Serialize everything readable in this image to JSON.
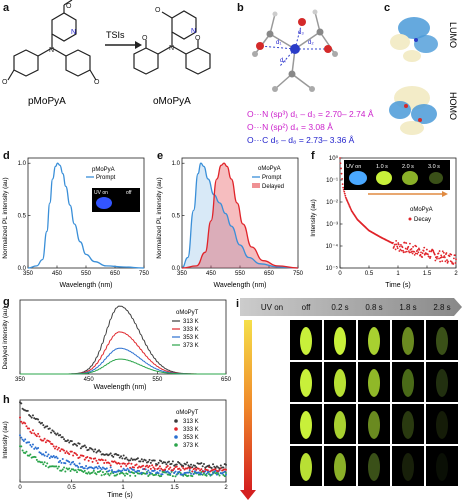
{
  "panels": {
    "a": {
      "letter": "a",
      "left_molecule": "pMoPyA",
      "right_molecule": "oMoPyA",
      "arrow_label": "TSIs"
    },
    "b": {
      "letter": "b",
      "line1": "O···N (sp³) d₁ – d₃ = 2.70– 2.74 Å",
      "line2": "O···N (sp²) d₄ = 3.08 Å",
      "line3": "O···C d₅ – d₈ = 2.73– 3.36 Å"
    },
    "c": {
      "letter": "c",
      "lumo": "LUMO",
      "homo": "HOMO"
    },
    "d": {
      "letter": "d",
      "ylabel": "Normalized PL intensity (au)",
      "xlabel": "Wavelength (nm)",
      "legend_title": "pMoPyA",
      "legend_item": "Prompt",
      "inset_on": "UV on",
      "inset_off": "off"
    },
    "e": {
      "letter": "e",
      "ylabel": "Normalized PL intensity (au)",
      "xlabel": "Wavelength (nm)",
      "legend_title": "oMoPyA",
      "legend_prompt": "Prompt",
      "legend_delayed": "Delayed"
    },
    "f": {
      "letter": "f",
      "ylabel": "Intensity (au)",
      "xlabel": "Time (s)",
      "legend_title": "oMoPyA",
      "legend_item": "Decay",
      "inset_labels": [
        "UV on",
        "1.0 s",
        "2.0 s",
        "3.0 s"
      ]
    },
    "g": {
      "letter": "g",
      "ylabel": "Dealyed intensity (au)",
      "xlabel": "Wavelength (nm)",
      "legend_title": "oMoPyT"
    },
    "h": {
      "letter": "h",
      "ylabel": "Intensity (au)",
      "xlabel": "Time (s)",
      "legend_title": "oMoPyT"
    },
    "i": {
      "letter": "i",
      "headers": [
        "UV on",
        "off",
        "0.2 s",
        "0.8 s",
        "1.8 s",
        "2.8 s"
      ],
      "temps": [
        "313 K",
        "333 K",
        "353 K",
        "373 K"
      ]
    }
  },
  "colors": {
    "prompt_blue": "#3a8fd8",
    "delayed_red": "#e0242a",
    "g313": "#3a3a3a",
    "g333": "#e0242a",
    "g353": "#2a6fd0",
    "g373": "#2aa44a",
    "label_magenta": "#cc22cc",
    "label_blue": "#2222cc"
  },
  "chart_data": [
    {
      "type": "line",
      "id": "d",
      "xlim": [
        350,
        750
      ],
      "xticks": [
        350,
        450,
        550,
        650,
        750
      ],
      "ylim": [
        0,
        1.05
      ],
      "yticks": [
        0.0,
        0.5,
        1.0
      ],
      "series": [
        {
          "name": "Prompt",
          "x": [
            350,
            380,
            400,
            415,
            425,
            435,
            445,
            452,
            460,
            470,
            480,
            495,
            510,
            530,
            550,
            580,
            620,
            680,
            750
          ],
          "y": [
            0.0,
            0.02,
            0.08,
            0.35,
            0.62,
            0.85,
            0.97,
            1.0,
            0.98,
            0.9,
            0.78,
            0.6,
            0.42,
            0.25,
            0.13,
            0.06,
            0.02,
            0.01,
            0.0
          ]
        }
      ]
    },
    {
      "type": "area",
      "id": "e",
      "xlim": [
        350,
        750
      ],
      "xticks": [
        350,
        450,
        550,
        650,
        750
      ],
      "ylim": [
        0,
        1.05
      ],
      "yticks": [
        0.0,
        0.5,
        1.0
      ],
      "series": [
        {
          "name": "Prompt",
          "x": [
            350,
            370,
            390,
            405,
            415,
            425,
            440,
            460,
            480,
            500,
            520,
            550,
            580,
            620,
            680,
            750
          ],
          "y": [
            0.0,
            0.1,
            0.55,
            0.9,
            1.0,
            0.97,
            0.85,
            0.7,
            0.62,
            0.52,
            0.4,
            0.22,
            0.1,
            0.04,
            0.01,
            0.0
          ]
        },
        {
          "name": "Delayed",
          "x": [
            350,
            400,
            430,
            450,
            470,
            485,
            495,
            505,
            520,
            540,
            560,
            590,
            630,
            680,
            750
          ],
          "y": [
            0.0,
            0.02,
            0.15,
            0.45,
            0.85,
            0.98,
            1.0,
            0.97,
            0.85,
            0.62,
            0.42,
            0.2,
            0.07,
            0.02,
            0.0
          ]
        }
      ]
    },
    {
      "type": "scatter",
      "id": "f",
      "xlim": [
        0.0,
        2.0
      ],
      "xticks": [
        0.0,
        0.5,
        1.0,
        1.5,
        2.0
      ],
      "ylim_log10": [
        -5,
        0
      ],
      "yticks": [
        "10⁰",
        "10⁻¹",
        "10⁻²",
        "10⁻³",
        "10⁻⁴",
        "10⁻⁵"
      ],
      "series": [
        {
          "name": "Decay",
          "x": [
            0.0,
            0.05,
            0.1,
            0.2,
            0.3,
            0.5,
            0.7,
            1.0,
            1.3,
            1.6,
            2.0
          ],
          "log10y": [
            0,
            -1.3,
            -1.8,
            -2.4,
            -2.8,
            -3.3,
            -3.6,
            -4.0,
            -4.2,
            -4.4,
            -4.6
          ]
        }
      ]
    },
    {
      "type": "line",
      "id": "g",
      "xlim": [
        350,
        650
      ],
      "xticks": [
        350,
        450,
        550,
        650
      ],
      "series": [
        {
          "name": "313 K",
          "peak": 1.0
        },
        {
          "name": "333 K",
          "peak": 0.62
        },
        {
          "name": "353 K",
          "peak": 0.38
        },
        {
          "name": "373 K",
          "peak": 0.22
        }
      ],
      "peak_wavelength": 495
    },
    {
      "type": "scatter",
      "id": "h",
      "xlim": [
        0.0,
        2.0
      ],
      "xticks": [
        0.0,
        0.5,
        1.0,
        1.5,
        2.0
      ],
      "series": [
        {
          "name": "313 K",
          "start": 1.0,
          "tau": 0.55,
          "floor": 0.18
        },
        {
          "name": "333 K",
          "start": 0.8,
          "tau": 0.45,
          "floor": 0.15
        },
        {
          "name": "353 K",
          "start": 0.6,
          "tau": 0.35,
          "floor": 0.12
        },
        {
          "name": "373 K",
          "start": 0.45,
          "tau": 0.25,
          "floor": 0.1
        }
      ]
    }
  ]
}
